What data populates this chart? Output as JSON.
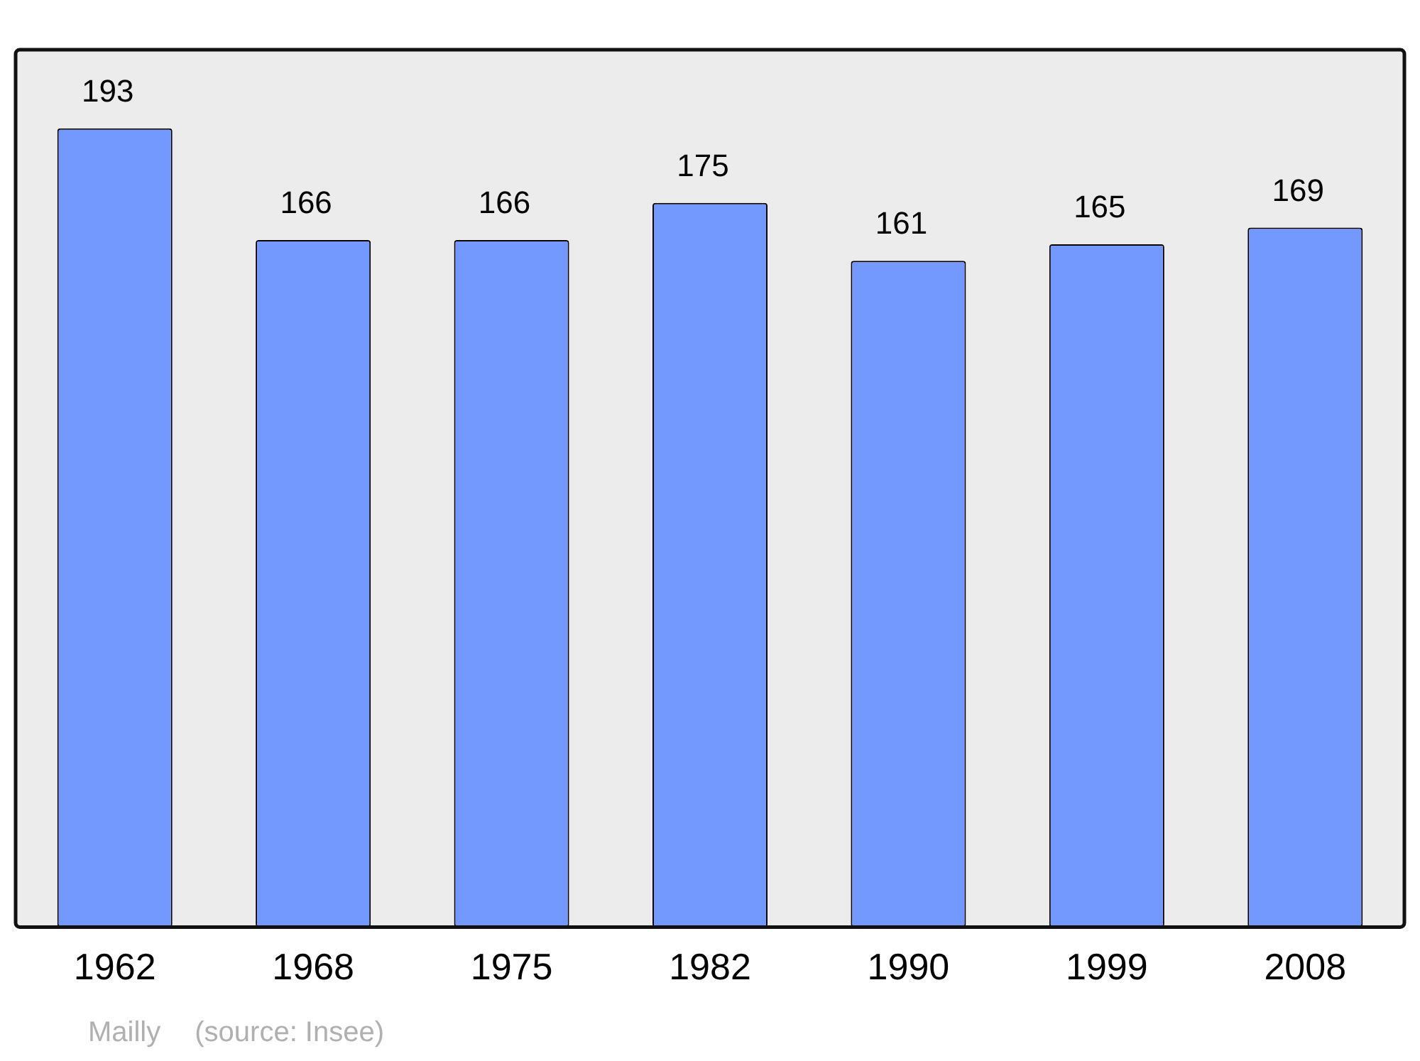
{
  "chart_data": {
    "type": "bar",
    "categories": [
      "1962",
      "1968",
      "1975",
      "1982",
      "1990",
      "1999",
      "2008"
    ],
    "values": [
      193,
      166,
      166,
      175,
      161,
      165,
      169
    ],
    "color": "#7399ff",
    "ylim": [
      0,
      212
    ],
    "data_labels": true,
    "grid": false,
    "legend": false,
    "tick_labels": "x",
    "annotations": [
      "Mailly",
      "(source: Insee)"
    ]
  }
}
